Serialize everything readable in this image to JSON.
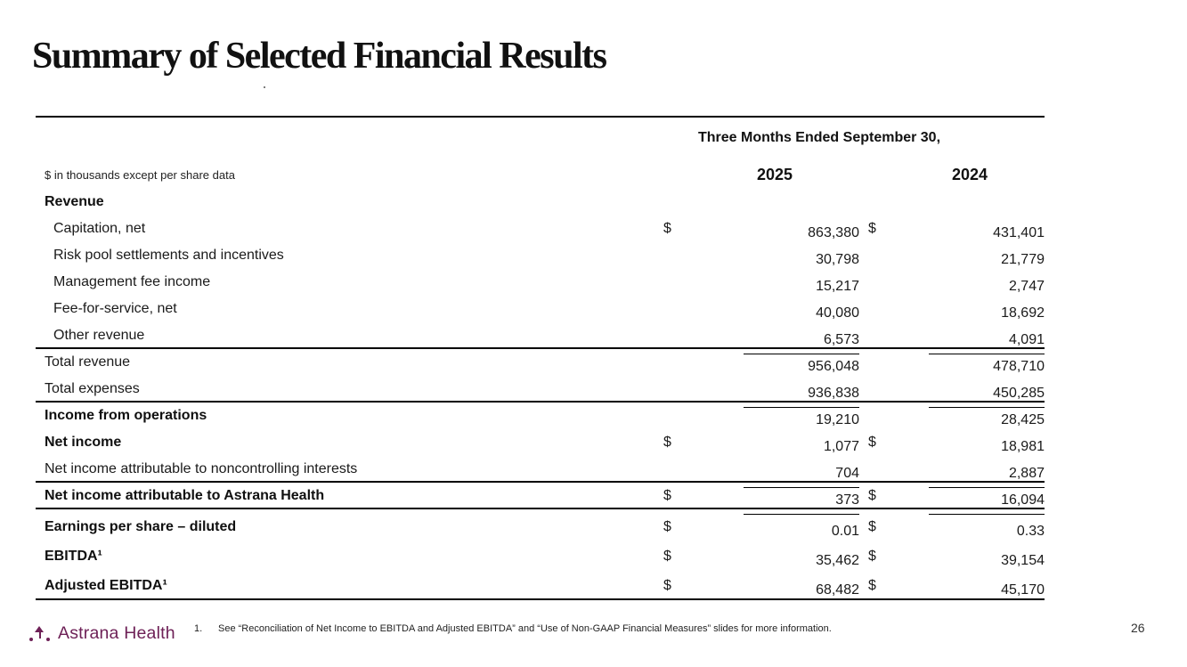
{
  "slide": {
    "title": "Summary of Selected Financial Results",
    "page_number": "26",
    "footnote": {
      "number": "1.",
      "text": "See “Reconciliation of Net Income to EBITDA and Adjusted EBITDA” and “Use of Non-GAAP Financial Measures” slides for more information."
    },
    "logo": {
      "name": "Astrana Health",
      "color": "#6E2157"
    }
  },
  "table": {
    "period_header": "Three Months Ended September 30,",
    "units_note": "$ in thousands except per share data",
    "currency_symbol": "$",
    "columns": [
      "2025",
      "2024"
    ],
    "rows": [
      {
        "label": "Revenue",
        "bold": true,
        "v2025": "",
        "v2024": ""
      },
      {
        "label": "Capitation, net",
        "indent": true,
        "dollar": true,
        "v2025": "863,380",
        "v2024": "431,401"
      },
      {
        "label": "Risk pool settlements and incentives",
        "indent": true,
        "v2025": "30,798",
        "v2024": "21,779"
      },
      {
        "label": "Management fee income",
        "indent": true,
        "v2025": "15,217",
        "v2024": "2,747"
      },
      {
        "label": "Fee-for-service, net",
        "indent": true,
        "v2025": "40,080",
        "v2024": "18,692"
      },
      {
        "label": "Other revenue",
        "indent": true,
        "v2025": "6,573",
        "v2024": "4,091",
        "underline": true,
        "divider": true
      },
      {
        "label": "Total revenue",
        "v2025": "956,048",
        "v2024": "478,710"
      },
      {
        "label": "Total expenses",
        "v2025": "936,838",
        "v2024": "450,285",
        "underline": true,
        "divider": true
      },
      {
        "label": "Income from operations",
        "bold": true,
        "v2025": "19,210",
        "v2024": "28,425"
      },
      {
        "label": "Net income",
        "bold": true,
        "dollar": true,
        "v2025": "1,077",
        "v2024": "18,981"
      },
      {
        "label": "Net income attributable to noncontrolling interests",
        "v2025": "704",
        "v2024": "2,887",
        "underline": true,
        "divider": true
      },
      {
        "label": "Net income attributable to Astrana Health",
        "bold": true,
        "dollar": true,
        "v2025": "373",
        "v2024": "16,094",
        "underline": true,
        "divider": true
      },
      {
        "label": "Earnings per share – diluted",
        "bold": true,
        "dollar": true,
        "v2025": "0.01",
        "v2024": "0.33"
      },
      {
        "label": "EBITDA¹",
        "bold": true,
        "dollar": true,
        "v2025": "35,462",
        "v2024": "39,154"
      },
      {
        "label": "Adjusted EBITDA¹",
        "bold": true,
        "dollar": true,
        "v2025": "68,482",
        "v2024": "45,170",
        "divider": true
      }
    ]
  }
}
